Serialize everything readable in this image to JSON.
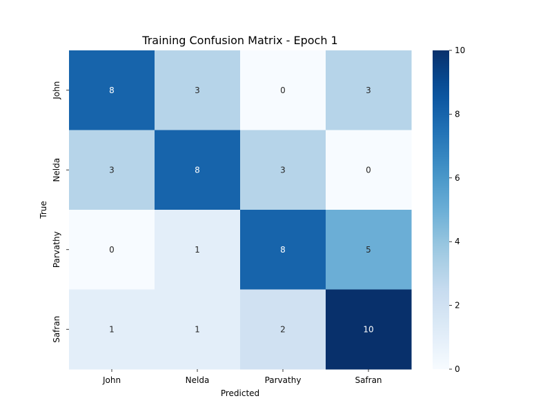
{
  "chart_data": {
    "type": "heatmap",
    "title": "Training Confusion Matrix - Epoch 1",
    "xlabel": "Predicted",
    "ylabel": "True",
    "x_categories": [
      "John",
      "Nelda",
      "Parvathy",
      "Safran"
    ],
    "y_categories": [
      "John",
      "Nelda",
      "Parvathy",
      "Safran"
    ],
    "values": [
      [
        8,
        3,
        0,
        3
      ],
      [
        3,
        8,
        3,
        0
      ],
      [
        0,
        1,
        8,
        5
      ],
      [
        1,
        1,
        2,
        10
      ]
    ],
    "colorscale": "Blues",
    "vmin": 0,
    "vmax": 10,
    "colorbar_ticks": [
      0,
      2,
      4,
      6,
      8,
      10
    ],
    "grid": false
  }
}
